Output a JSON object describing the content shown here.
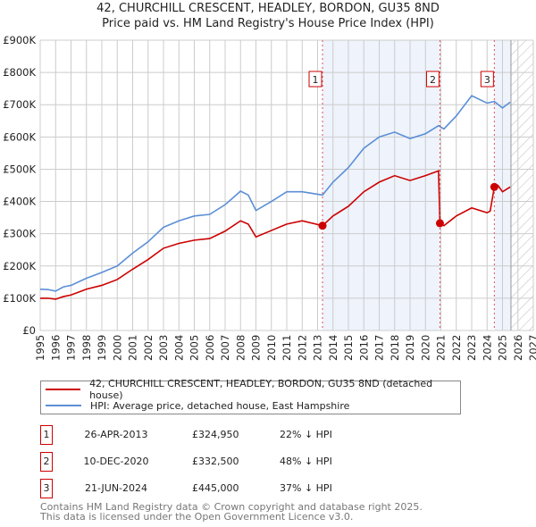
{
  "chart_data": {
    "type": "line",
    "title": "42, CHURCHILL CRESCENT, HEADLEY, BORDON, GU35 8ND",
    "subtitle": "Price paid vs. HM Land Registry's House Price Index (HPI)",
    "xlim": [
      1995,
      2027
    ],
    "ylim": [
      0,
      900000
    ],
    "x_ticks": [
      "1995",
      "1996",
      "1997",
      "1998",
      "1999",
      "2000",
      "2001",
      "2002",
      "2003",
      "2004",
      "2005",
      "2006",
      "2007",
      "2008",
      "2009",
      "2010",
      "2011",
      "2012",
      "2013",
      "2014",
      "2015",
      "2016",
      "2017",
      "2018",
      "2019",
      "2020",
      "2021",
      "2022",
      "2023",
      "2024",
      "2025",
      "2026",
      "2027"
    ],
    "y_ticks": [
      "£0",
      "£100K",
      "£200K",
      "£300K",
      "£400K",
      "£500K",
      "£600K",
      "£700K",
      "£800K",
      "£900K"
    ],
    "grid": true,
    "series": [
      {
        "name": "42, CHURCHILL CRESCENT, HEADLEY, BORDON, GU35 8ND (detached house)",
        "color": "#cc0000",
        "x": [
          1995,
          1995.5,
          1996,
          1996.5,
          1997,
          1998,
          1999,
          2000,
          2001,
          2002,
          2003,
          2004,
          2005,
          2006,
          2007,
          2008,
          2008.5,
          2009,
          2010,
          2011,
          2012,
          2013.32,
          2014,
          2015,
          2016,
          2017,
          2018,
          2019,
          2020,
          2020.85,
          2020.94,
          2021.2,
          2022,
          2023,
          2024,
          2024.2,
          2024.47,
          2024.7,
          2025,
          2025.5
        ],
        "y": [
          100000,
          100000,
          97000,
          105000,
          110000,
          128000,
          140000,
          158000,
          190000,
          220000,
          255000,
          270000,
          280000,
          285000,
          308000,
          340000,
          330000,
          290000,
          310000,
          330000,
          340000,
          324950,
          355000,
          385000,
          430000,
          460000,
          480000,
          465000,
          480000,
          495000,
          332500,
          325000,
          355000,
          380000,
          365000,
          370000,
          445000,
          450000,
          430000,
          445000
        ]
      },
      {
        "name": "HPI: Average price, detached house, East Hampshire",
        "color": "#5b8fd6",
        "x": [
          1995,
          1995.5,
          1996,
          1996.5,
          1997,
          1998,
          1999,
          2000,
          2001,
          2002,
          2003,
          2004,
          2005,
          2006,
          2007,
          2008,
          2008.5,
          2009,
          2010,
          2011,
          2012,
          2013.32,
          2014,
          2015,
          2016,
          2017,
          2018,
          2019,
          2020,
          2020.85,
          2021.2,
          2022,
          2023,
          2024,
          2024.47,
          2025,
          2025.5
        ],
        "y": [
          128000,
          127000,
          122000,
          135000,
          140000,
          162000,
          180000,
          200000,
          240000,
          275000,
          320000,
          340000,
          355000,
          360000,
          390000,
          432000,
          420000,
          372000,
          400000,
          430000,
          430000,
          420000,
          460000,
          505000,
          565000,
          600000,
          615000,
          595000,
          610000,
          635000,
          625000,
          665000,
          728000,
          705000,
          710000,
          690000,
          708000
        ]
      }
    ],
    "sales": [
      {
        "label": "1",
        "x": 2013.32,
        "date": "26-APR-2013",
        "price": "£324,950",
        "price_value": 324950,
        "hpi": "22% ↓ HPI"
      },
      {
        "label": "2",
        "x": 2020.94,
        "date": "10-DEC-2020",
        "price": "£332,500",
        "price_value": 332500,
        "hpi": "48% ↓ HPI"
      },
      {
        "label": "3",
        "x": 2024.47,
        "date": "21-JUN-2024",
        "price": "£445,000",
        "price_value": 445000,
        "hpi": "37% ↓ HPI"
      }
    ],
    "data_end_x": 2025.55
  },
  "footer": {
    "line1": "Contains HM Land Registry data © Crown copyright and database right 2025.",
    "line2": "This data is licensed under the Open Government Licence v3.0."
  }
}
